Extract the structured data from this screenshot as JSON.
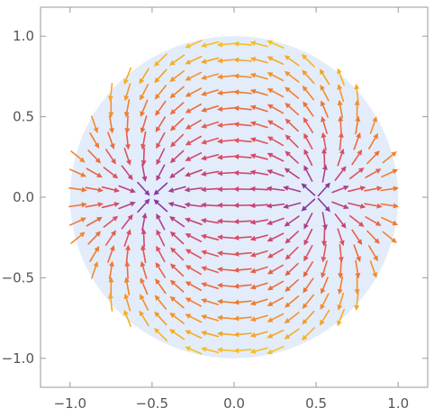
{
  "chart_data": {
    "type": "vector-field",
    "title": "",
    "xlabel": "",
    "ylabel": "",
    "xlim": [
      -1.18,
      1.18
    ],
    "ylim": [
      -1.18,
      1.18
    ],
    "x_ticks": [
      -1.0,
      -0.5,
      0.0,
      0.5,
      1.0
    ],
    "y_ticks": [
      -1.0,
      -0.5,
      0.0,
      0.5,
      1.0
    ],
    "x_tick_labels": [
      "−1.0",
      "−0.5",
      "0.0",
      "0.5",
      "1.0"
    ],
    "y_tick_labels": [
      "−1.0",
      "−0.5",
      "0.0",
      "0.5",
      "1.0"
    ],
    "grid": false,
    "region": {
      "shape": "disk",
      "center": [
        0,
        0
      ],
      "radius": 1.0,
      "fill_color": "#e3ecfa"
    },
    "field": {
      "u": "x^2 - y^2 - 1/4",
      "v": "2*x*y",
      "critical_points": [
        [
          0.5,
          0.0
        ],
        [
          -0.5,
          0.0
        ]
      ]
    },
    "sampling": {
      "x_min": -0.95,
      "x_max": 0.95,
      "y_min": -0.95,
      "y_max": 0.95,
      "step": 0.1
    },
    "color_scale": [
      "#1a0aa8",
      "#8a3aa0",
      "#d84868",
      "#f07830",
      "#f8c020"
    ]
  }
}
